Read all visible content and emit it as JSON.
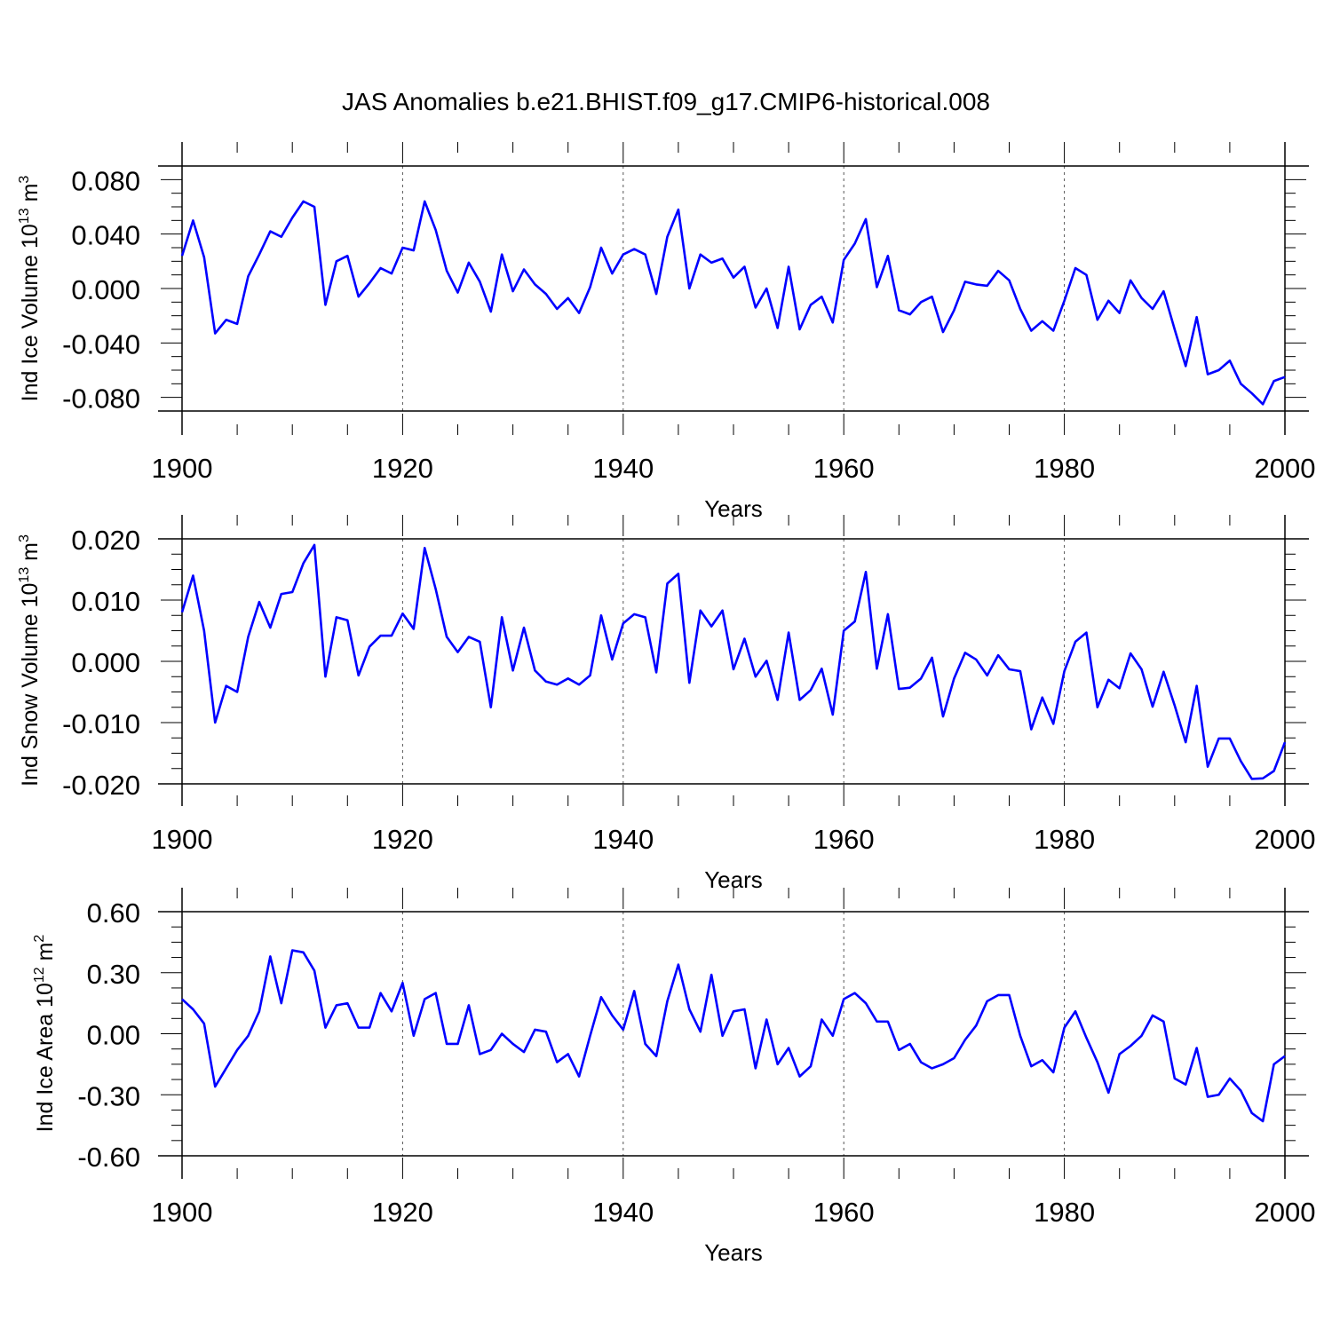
{
  "figure": {
    "title": "JAS Anomalies b.e21.BHIST.f09_g17.CMIP6-historical.008",
    "line_color": "#0000ff",
    "axis_color": "#000000",
    "grid_color": "#555555"
  },
  "chart_data": [
    {
      "type": "line",
      "title": "JAS Anomalies b.e21.BHIST.f09_g17.CMIP6-historical.008",
      "xlabel": "Years",
      "ylabel": {
        "prefix": "Ind Ice Volume 10",
        "exp": "13",
        "mid": " m",
        "exp2": "3"
      },
      "xlim": [
        1900,
        2000
      ],
      "ylim": [
        -0.09,
        0.09
      ],
      "xticks": [
        1900,
        1920,
        1940,
        1960,
        1980,
        2000
      ],
      "xtick_labels": [
        "1900",
        "1920",
        "1940",
        "1960",
        "1980",
        "2000"
      ],
      "yticks": [
        0.08,
        0.04,
        0.0,
        -0.04,
        -0.08
      ],
      "ytick_labels": [
        "0.080",
        "0.040",
        "0.000",
        "-0.040",
        "-0.080"
      ],
      "series": [
        {
          "name": "Ind Ice Volume",
          "x_start": 1900,
          "values": [
            0.024,
            0.05,
            0.023,
            -0.033,
            -0.023,
            -0.026,
            0.009,
            0.025,
            0.042,
            0.038,
            0.052,
            0.064,
            0.06,
            -0.012,
            0.02,
            0.024,
            -0.006,
            0.004,
            0.015,
            0.011,
            0.03,
            0.028,
            0.064,
            0.043,
            0.013,
            -0.003,
            0.019,
            0.005,
            -0.017,
            0.025,
            -0.002,
            0.014,
            0.003,
            -0.004,
            -0.015,
            -0.007,
            -0.018,
            0.001,
            0.03,
            0.011,
            0.025,
            0.029,
            0.025,
            -0.004,
            0.038,
            0.058,
            0.0,
            0.025,
            0.019,
            0.022,
            0.008,
            0.016,
            -0.014,
            0.0,
            -0.029,
            0.016,
            -0.03,
            -0.012,
            -0.006,
            -0.025,
            0.021,
            0.033,
            0.051,
            0.001,
            0.024,
            -0.016,
            -0.019,
            -0.01,
            -0.006,
            -0.032,
            -0.016,
            0.005,
            0.003,
            0.002,
            0.013,
            0.006,
            -0.015,
            -0.031,
            -0.024,
            -0.031,
            -0.009,
            0.015,
            0.01,
            -0.023,
            -0.009,
            -0.018,
            0.006,
            -0.007,
            -0.015,
            -0.002,
            -0.03,
            -0.057,
            -0.021,
            -0.063,
            -0.06,
            -0.053,
            -0.07,
            -0.077,
            -0.085,
            -0.068,
            -0.065
          ]
        }
      ]
    },
    {
      "type": "line",
      "title": "",
      "xlabel": "Years",
      "ylabel": {
        "prefix": "Ind Snow Volume 10",
        "exp": "13",
        "mid": " m",
        "exp2": "3"
      },
      "xlim": [
        1900,
        2000
      ],
      "ylim": [
        -0.02,
        0.02
      ],
      "xticks": [
        1900,
        1920,
        1940,
        1960,
        1980,
        2000
      ],
      "xtick_labels": [
        "1900",
        "1920",
        "1940",
        "1960",
        "1980",
        "2000"
      ],
      "yticks": [
        0.02,
        0.01,
        0.0,
        -0.01,
        -0.02
      ],
      "ytick_labels": [
        "0.020",
        "0.010",
        "0.000",
        "-0.010",
        "-0.020"
      ],
      "series": [
        {
          "name": "Ind Snow Volume",
          "x_start": 1900,
          "values": [
            0.008,
            0.014,
            0.005,
            -0.01,
            -0.004,
            -0.005,
            0.004,
            0.0097,
            0.0055,
            0.011,
            0.0113,
            0.016,
            0.019,
            -0.0025,
            0.0072,
            0.0067,
            -0.0023,
            0.0024,
            0.0042,
            0.0042,
            0.0078,
            0.0053,
            0.0185,
            0.0118,
            0.004,
            0.0015,
            0.004,
            0.0032,
            -0.0075,
            0.0072,
            -0.0015,
            0.0055,
            -0.0015,
            -0.0033,
            -0.0038,
            -0.0028,
            -0.0038,
            -0.0023,
            0.0075,
            0.0003,
            0.0062,
            0.0077,
            0.0072,
            -0.0018,
            0.0127,
            0.0143,
            -0.0035,
            0.0083,
            0.0057,
            0.0083,
            -0.0013,
            0.0037,
            -0.0025,
            0.0001,
            -0.0063,
            0.0047,
            -0.0063,
            -0.0047,
            -0.0012,
            -0.0087,
            0.005,
            0.0065,
            0.0146,
            -0.0012,
            0.0077,
            -0.0045,
            -0.0043,
            -0.0028,
            0.0006,
            -0.009,
            -0.0028,
            0.0014,
            0.0003,
            -0.0023,
            0.001,
            -0.0013,
            -0.0016,
            -0.0111,
            -0.0059,
            -0.0102,
            -0.0016,
            0.0032,
            0.0047,
            -0.0075,
            -0.003,
            -0.0044,
            0.0013,
            -0.0013,
            -0.0074,
            -0.0017,
            -0.0072,
            -0.0132,
            -0.004,
            -0.0172,
            -0.0126,
            -0.0126,
            -0.0163,
            -0.0192,
            -0.0191,
            -0.0179,
            -0.0132
          ]
        }
      ]
    },
    {
      "type": "line",
      "title": "",
      "xlabel": "Years",
      "ylabel": {
        "prefix": "Ind Ice Area 10",
        "exp": "12",
        "mid": " m",
        "exp2": "2"
      },
      "xlim": [
        1900,
        2000
      ],
      "ylim": [
        -0.6,
        0.6
      ],
      "xticks": [
        1900,
        1920,
        1940,
        1960,
        1980,
        2000
      ],
      "xtick_labels": [
        "1900",
        "1920",
        "1940",
        "1960",
        "1980",
        "2000"
      ],
      "yticks": [
        0.6,
        0.3,
        0.0,
        -0.3,
        -0.6
      ],
      "ytick_labels": [
        "0.60",
        "0.30",
        "0.00",
        "-0.30",
        "-0.60"
      ],
      "series": [
        {
          "name": "Ind Ice Area",
          "x_start": 1900,
          "values": [
            0.17,
            0.12,
            0.05,
            -0.26,
            -0.17,
            -0.08,
            -0.01,
            0.11,
            0.38,
            0.15,
            0.41,
            0.4,
            0.31,
            0.03,
            0.14,
            0.15,
            0.03,
            0.03,
            0.2,
            0.11,
            0.25,
            -0.01,
            0.17,
            0.2,
            -0.05,
            -0.05,
            0.14,
            -0.1,
            -0.08,
            0.0,
            -0.05,
            -0.09,
            0.02,
            0.01,
            -0.14,
            -0.1,
            -0.21,
            -0.01,
            0.18,
            0.09,
            0.02,
            0.21,
            -0.05,
            -0.11,
            0.16,
            0.34,
            0.12,
            0.01,
            0.29,
            -0.01,
            0.11,
            0.12,
            -0.17,
            0.07,
            -0.15,
            -0.07,
            -0.21,
            -0.16,
            0.07,
            -0.01,
            0.17,
            0.2,
            0.15,
            0.06,
            0.06,
            -0.08,
            -0.05,
            -0.14,
            -0.17,
            -0.15,
            -0.12,
            -0.03,
            0.04,
            0.16,
            0.19,
            0.19,
            -0.01,
            -0.16,
            -0.13,
            -0.19,
            0.03,
            0.11,
            -0.02,
            -0.14,
            -0.29,
            -0.1,
            -0.06,
            -0.01,
            0.09,
            0.06,
            -0.22,
            -0.25,
            -0.07,
            -0.31,
            -0.3,
            -0.22,
            -0.28,
            -0.39,
            -0.43,
            -0.15,
            -0.11
          ]
        }
      ]
    }
  ]
}
